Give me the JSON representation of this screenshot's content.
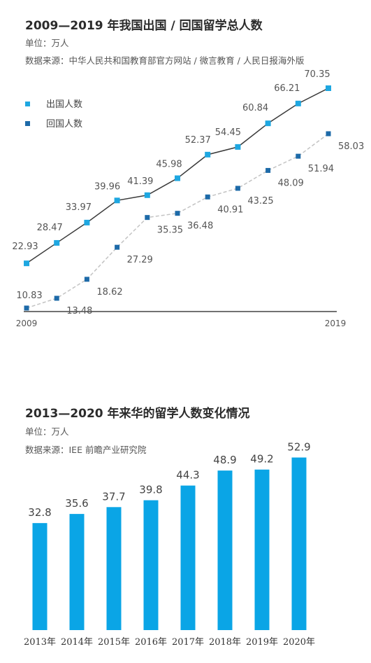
{
  "chart1": {
    "title": "2009—2019 年我国出国 / 回国留学总人数",
    "unit": "单位：万人",
    "source": "数据来源：中华人民共和国教育部官方网站 / 微言教育 / 人民日报海外版",
    "chart_data": {
      "type": "line",
      "x": [
        2009,
        2010,
        2011,
        2012,
        2013,
        2014,
        2015,
        2016,
        2017,
        2018,
        2019
      ],
      "x_tick_labels": [
        "2009",
        "2019"
      ],
      "series": [
        {
          "name": "出国人数",
          "color": "#1ea7e1",
          "values": [
            22.93,
            28.47,
            33.97,
            39.96,
            41.39,
            45.98,
            52.37,
            54.45,
            60.84,
            66.21,
            70.35
          ]
        },
        {
          "name": "回国人数",
          "color": "#1d6aa8",
          "values": [
            10.83,
            13.48,
            18.62,
            27.29,
            35.35,
            36.48,
            40.91,
            43.25,
            48.09,
            51.94,
            58.03
          ]
        }
      ],
      "legend_position": "top-left",
      "grid": false
    }
  },
  "chart2": {
    "title": "2013—2020 年来华的留学人数变化情况",
    "unit": "单位：万人",
    "source": "数据来源：IEE 前瞻产业研究院",
    "chart_data": {
      "type": "bar",
      "categories": [
        "2013年",
        "2014年",
        "2015年",
        "2016年",
        "2017年",
        "2018年",
        "2019年",
        "2020年"
      ],
      "values": [
        32.8,
        35.6,
        37.7,
        39.8,
        44.3,
        48.9,
        49.2,
        52.9
      ],
      "value_labels": [
        "32.8",
        "35.6",
        "37.7",
        "39.8",
        "44.3",
        "48.9",
        "49.2",
        "52.9"
      ],
      "bar_color": "#0aa5e6",
      "grid": false
    }
  }
}
